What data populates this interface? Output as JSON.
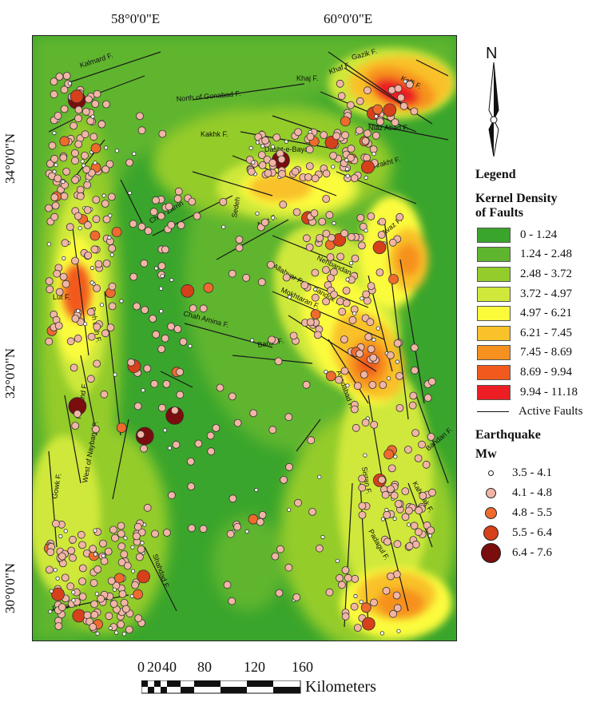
{
  "axes": {
    "top_labels": [
      "58°0'0\"E",
      "60°0'0\"E"
    ],
    "left_labels": [
      "34°0'0\"N",
      "32°0'0\"N",
      "30°0'0\"N"
    ]
  },
  "north_arrow": {
    "label": "N"
  },
  "legend": {
    "title": "Legend",
    "density_title_line1": "Kernel Density",
    "density_title_line2": "of Faults",
    "density_classes": [
      {
        "label": "0 - 1.24",
        "color": "#3aa52c"
      },
      {
        "label": "1.24 - 2.48",
        "color": "#5fb52e"
      },
      {
        "label": "2.48 - 3.72",
        "color": "#94cc2c"
      },
      {
        "label": "3.72 - 4.97",
        "color": "#cfe83a"
      },
      {
        "label": "4.97 - 6.21",
        "color": "#fbfb3c"
      },
      {
        "label": "6.21 - 7.45",
        "color": "#f9c12a"
      },
      {
        "label": "7.45 - 8.69",
        "color": "#f6901f"
      },
      {
        "label": "8.69 - 9.94",
        "color": "#f15a1c"
      },
      {
        "label": "9.94 - 11.18",
        "color": "#ec1e24"
      }
    ],
    "faults_label": "Active Faults",
    "earthquake_title": "Earthquake",
    "mw_title": "Mw",
    "mw_classes": [
      {
        "label": "3.5 - 4.1",
        "color": "#ffffff"
      },
      {
        "label": "4.1 - 4.8",
        "color": "#f2b5a5"
      },
      {
        "label": "4.8 - 5.5",
        "color": "#f06a2e"
      },
      {
        "label": "5.5 - 6.4",
        "color": "#d6401b"
      },
      {
        "label": "6.4 - 7.6",
        "color": "#7a0d0d"
      }
    ]
  },
  "scale": {
    "ticks": [
      "0",
      "20",
      "40",
      "80",
      "120",
      "160"
    ],
    "unit": "Kilometers"
  },
  "fault_labels": [
    "Kalmard F.",
    "Gazik F.",
    "Khaf F.",
    "Kaffi F.",
    "Khaj F.",
    "North of Gonabad F.",
    "Niaz Abad F.",
    "Kakhk F.",
    "Dasht-e-Bayaz",
    "Shahrakht F.",
    "Chah Zarrin",
    "Ainz F.",
    "Sedeh",
    "Avaz F.",
    "Nehbandan F.",
    "Allahyar F.",
    "Sanduk F.",
    "Mokhtaran F.",
    "Chah Amina F.",
    "Barak F.",
    "Asadabad F.",
    "Nayband F.",
    "Deh Dah F.",
    "Lut F.",
    "West of Nayband F.",
    "Gowk F.",
    "Sistan F.",
    "Bandan F.",
    "Shahdad F.",
    "Rayen F.",
    "Padagul F.",
    "Kahurak F."
  ]
}
